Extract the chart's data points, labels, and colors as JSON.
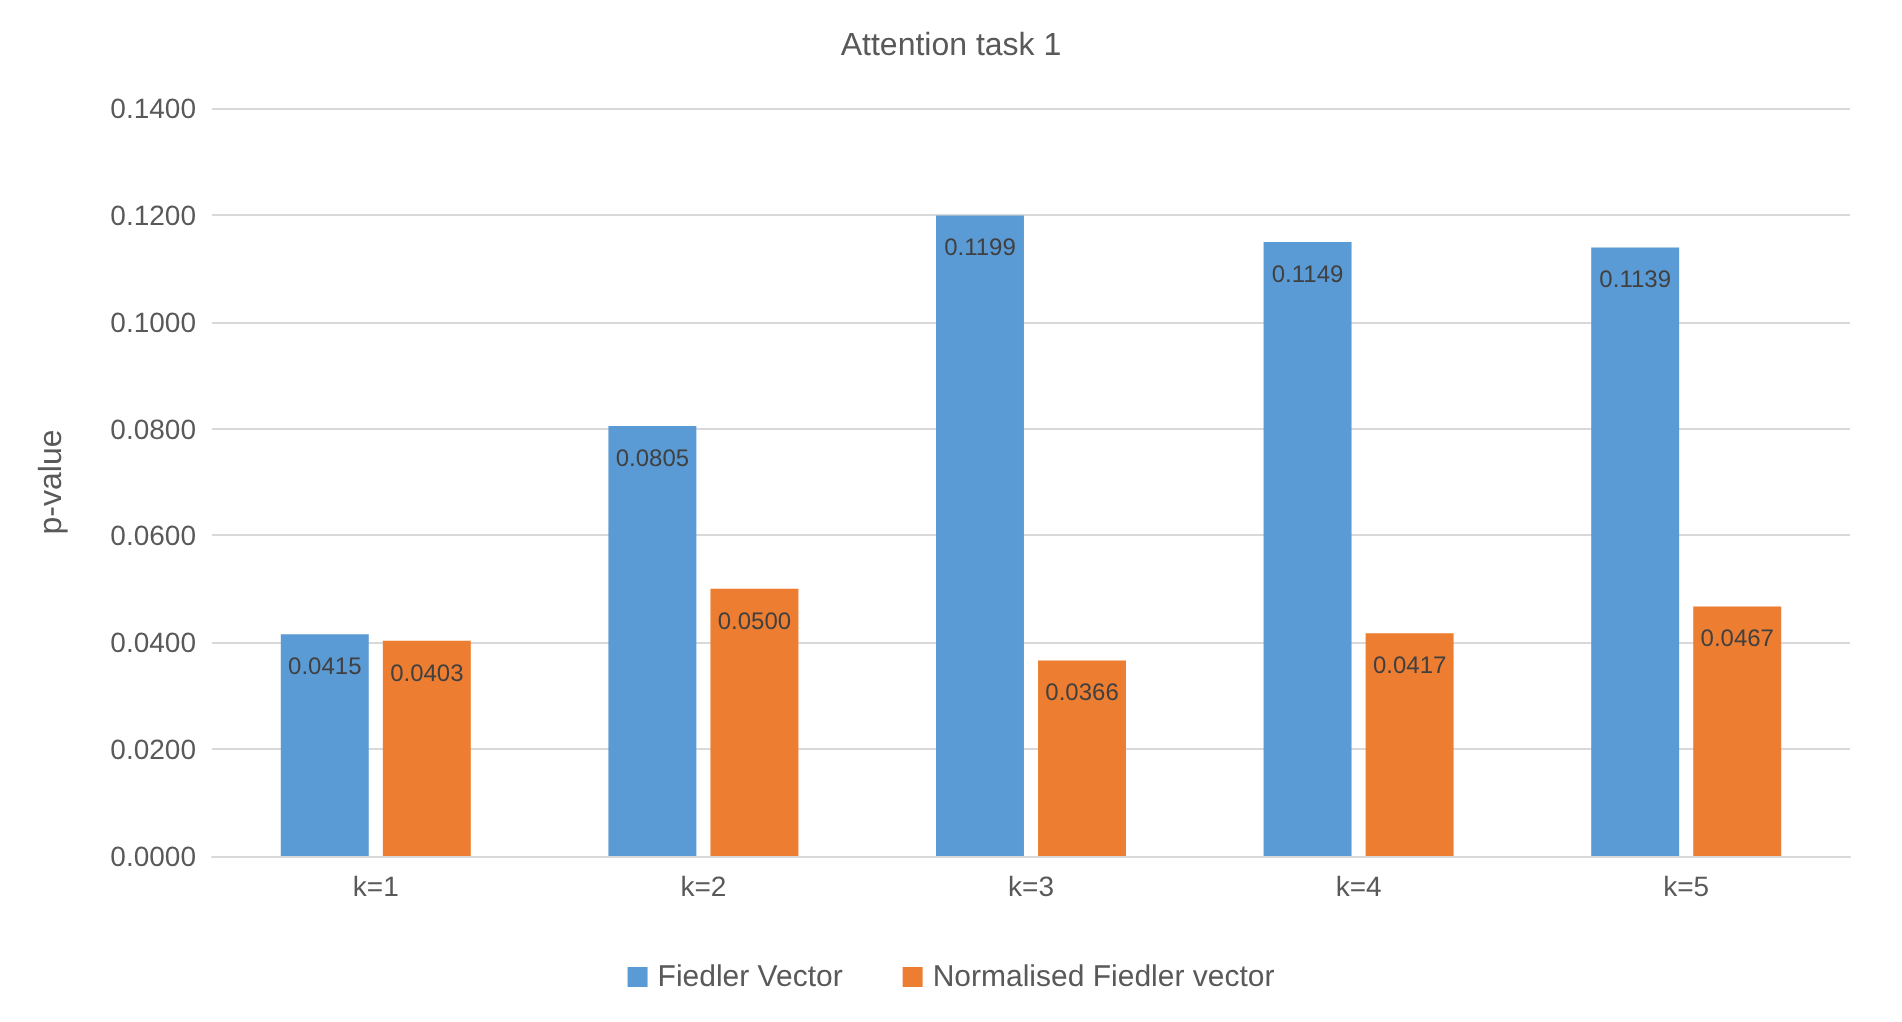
{
  "chart_data": {
    "type": "bar",
    "title": "Attention task 1",
    "ylabel": "p-value",
    "categories": [
      "k=1",
      "k=2",
      "k=3",
      "k=4",
      "k=5"
    ],
    "series": [
      {
        "name": "Fiedler Vector",
        "color": "#5b9bd5",
        "values": [
          0.0415,
          0.0805,
          0.1199,
          0.1149,
          0.1139
        ],
        "value_labels": [
          "0.0415",
          "0.0805",
          "0.1199",
          "0.1149",
          "0.1139"
        ]
      },
      {
        "name": "Normalised Fiedler vector",
        "color": "#ed7d31",
        "values": [
          0.0403,
          0.05,
          0.0366,
          0.0417,
          0.0467
        ],
        "value_labels": [
          "0.0403",
          "0.0500",
          "0.0366",
          "0.0417",
          "0.0467"
        ]
      }
    ],
    "ylim": [
      0,
      0.14
    ],
    "yticks": [
      {
        "value": 0,
        "label": "0.0000"
      },
      {
        "value": 0.02,
        "label": "0.0200"
      },
      {
        "value": 0.04,
        "label": "0.0400"
      },
      {
        "value": 0.06,
        "label": "0.0600"
      },
      {
        "value": 0.08,
        "label": "0.0800"
      },
      {
        "value": 0.1,
        "label": "0.1000"
      },
      {
        "value": 0.12,
        "label": "0.1200"
      },
      {
        "value": 0.14,
        "label": "0.1400"
      }
    ],
    "grid": "y",
    "legend": "bottom"
  }
}
